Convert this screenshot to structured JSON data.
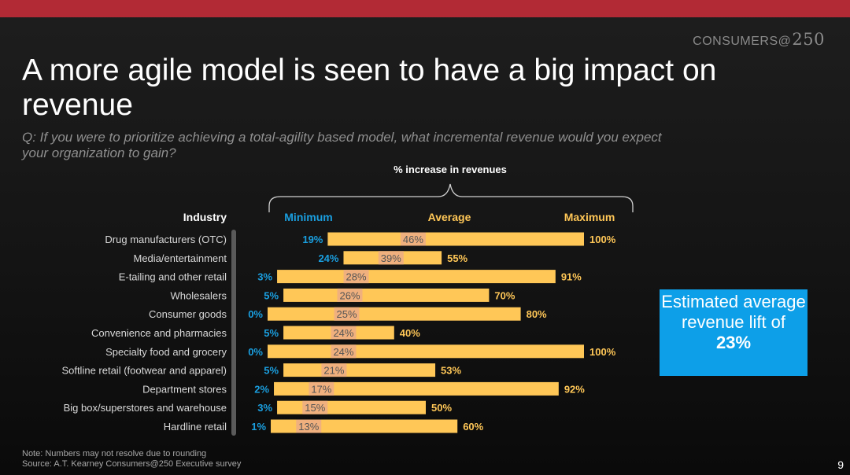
{
  "brand": {
    "text": "CONSUMERS",
    "at": "@",
    "num": "250"
  },
  "title": "A more agile model is seen to have a big impact on revenue",
  "question": "Q: If you were to prioritize achieving a total-agility based model, what incremental revenue would you expect your organization to gain?",
  "callout": {
    "line1": "Estimated average revenue lift of",
    "value": "23%"
  },
  "footer": {
    "note": "Note: Numbers may not resolve due to rounding",
    "source": "Source: A.T. Kearney Consumers@250 Executive survey",
    "page_number": "9"
  },
  "colors": {
    "bar": "#ffc757",
    "avg_highlight": "#f0b07e",
    "min_label": "#1a9fe0",
    "max_label": "#ffc757",
    "accent_red": "#b22a35",
    "callout_bg": "#0d9fe8"
  },
  "chart_data": {
    "type": "bar",
    "orientation": "horizontal",
    "subtype": "range",
    "title": "% increase in revenues",
    "category_header": "Industry",
    "column_headers": {
      "min": "Minimum",
      "avg": "Average",
      "max": "Maximum"
    },
    "categories": [
      "Drug manufacturers (OTC)",
      "Media/entertainment",
      "E-tailing and other retail",
      "Wholesalers",
      "Consumer goods",
      "Convenience and pharmacies",
      "Specialty food and grocery",
      "Softline retail (footwear and apparel)",
      "Department stores",
      "Big box/superstores and warehouse",
      "Hardline retail"
    ],
    "min": [
      19,
      24,
      3,
      5,
      0,
      5,
      0,
      5,
      2,
      3,
      1
    ],
    "avg": [
      46,
      39,
      28,
      26,
      25,
      24,
      24,
      21,
      17,
      15,
      13
    ],
    "max": [
      100,
      55,
      91,
      70,
      80,
      40,
      100,
      53,
      92,
      50,
      60
    ],
    "unit": "%",
    "xlim": [
      0,
      100
    ]
  }
}
